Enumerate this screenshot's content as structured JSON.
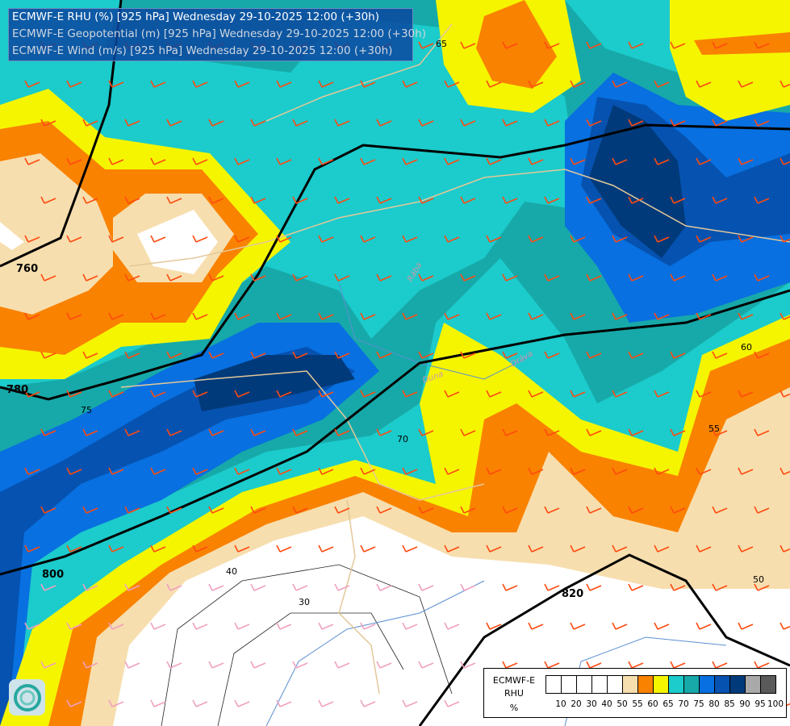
{
  "title_lines": [
    "ECMWF-E RHU (%) [925 hPa] Wednesday 29-10-2025 12:00 (+30h)",
    "ECMWF-E Geopotential (m) [925 hPa] Wednesday 29-10-2025 12:00 (+30h)",
    "ECMWF-E Wind (m/s) [925 hPa] Wednesday 29-10-2025 12:00 (+30h)"
  ],
  "legend": {
    "title": [
      "ECMWF-E",
      "RHU",
      "%"
    ],
    "colors": [
      "#ffffff",
      "#ffffff",
      "#ffffff",
      "#ffffff",
      "#ffffff",
      "#f7deae",
      "#f98200",
      "#f5f500",
      "#1ccbcb",
      "#17a9a9",
      "#0870e0",
      "#0652b0",
      "#003a7a",
      "#a9a9a9",
      "#5a5a5a"
    ],
    "ticks": [
      "10",
      "20",
      "30",
      "40",
      "50",
      "55",
      "60",
      "65",
      "70",
      "75",
      "80",
      "85",
      "90",
      "95",
      "100"
    ]
  },
  "geopotential_labels": [
    "760",
    "780",
    "800",
    "820"
  ],
  "rhu_labels": [
    "30",
    "40",
    "50",
    "55",
    "60",
    "65",
    "70",
    "75"
  ],
  "river_labels": [
    "Rába",
    "Dráva",
    "Duna"
  ]
}
